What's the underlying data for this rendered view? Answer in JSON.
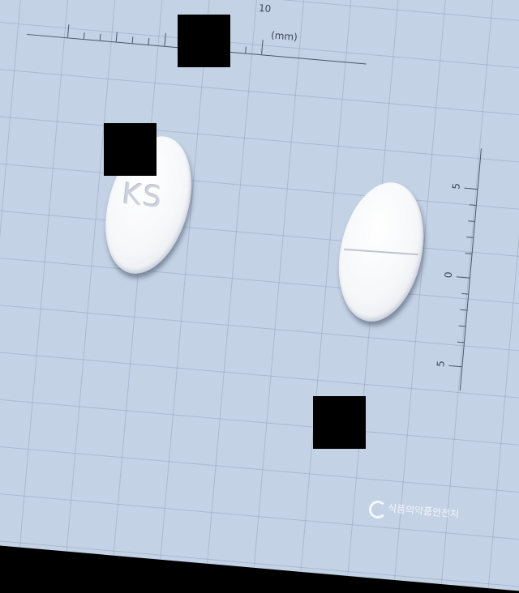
{
  "ruler": {
    "top_number": "10",
    "unit": "(mm)",
    "right_numbers": [
      "5",
      "0",
      "5"
    ]
  },
  "pills": [
    {
      "name": "left",
      "imprint": "KS"
    },
    {
      "name": "right",
      "imprint": ""
    }
  ],
  "watermark": {
    "text": "식품의약품안전처",
    "logo_icon": "agency-logo-icon"
  },
  "colors": {
    "background": "#c4d2e6",
    "pill": "#f6f7f9",
    "redaction": "#000000"
  }
}
